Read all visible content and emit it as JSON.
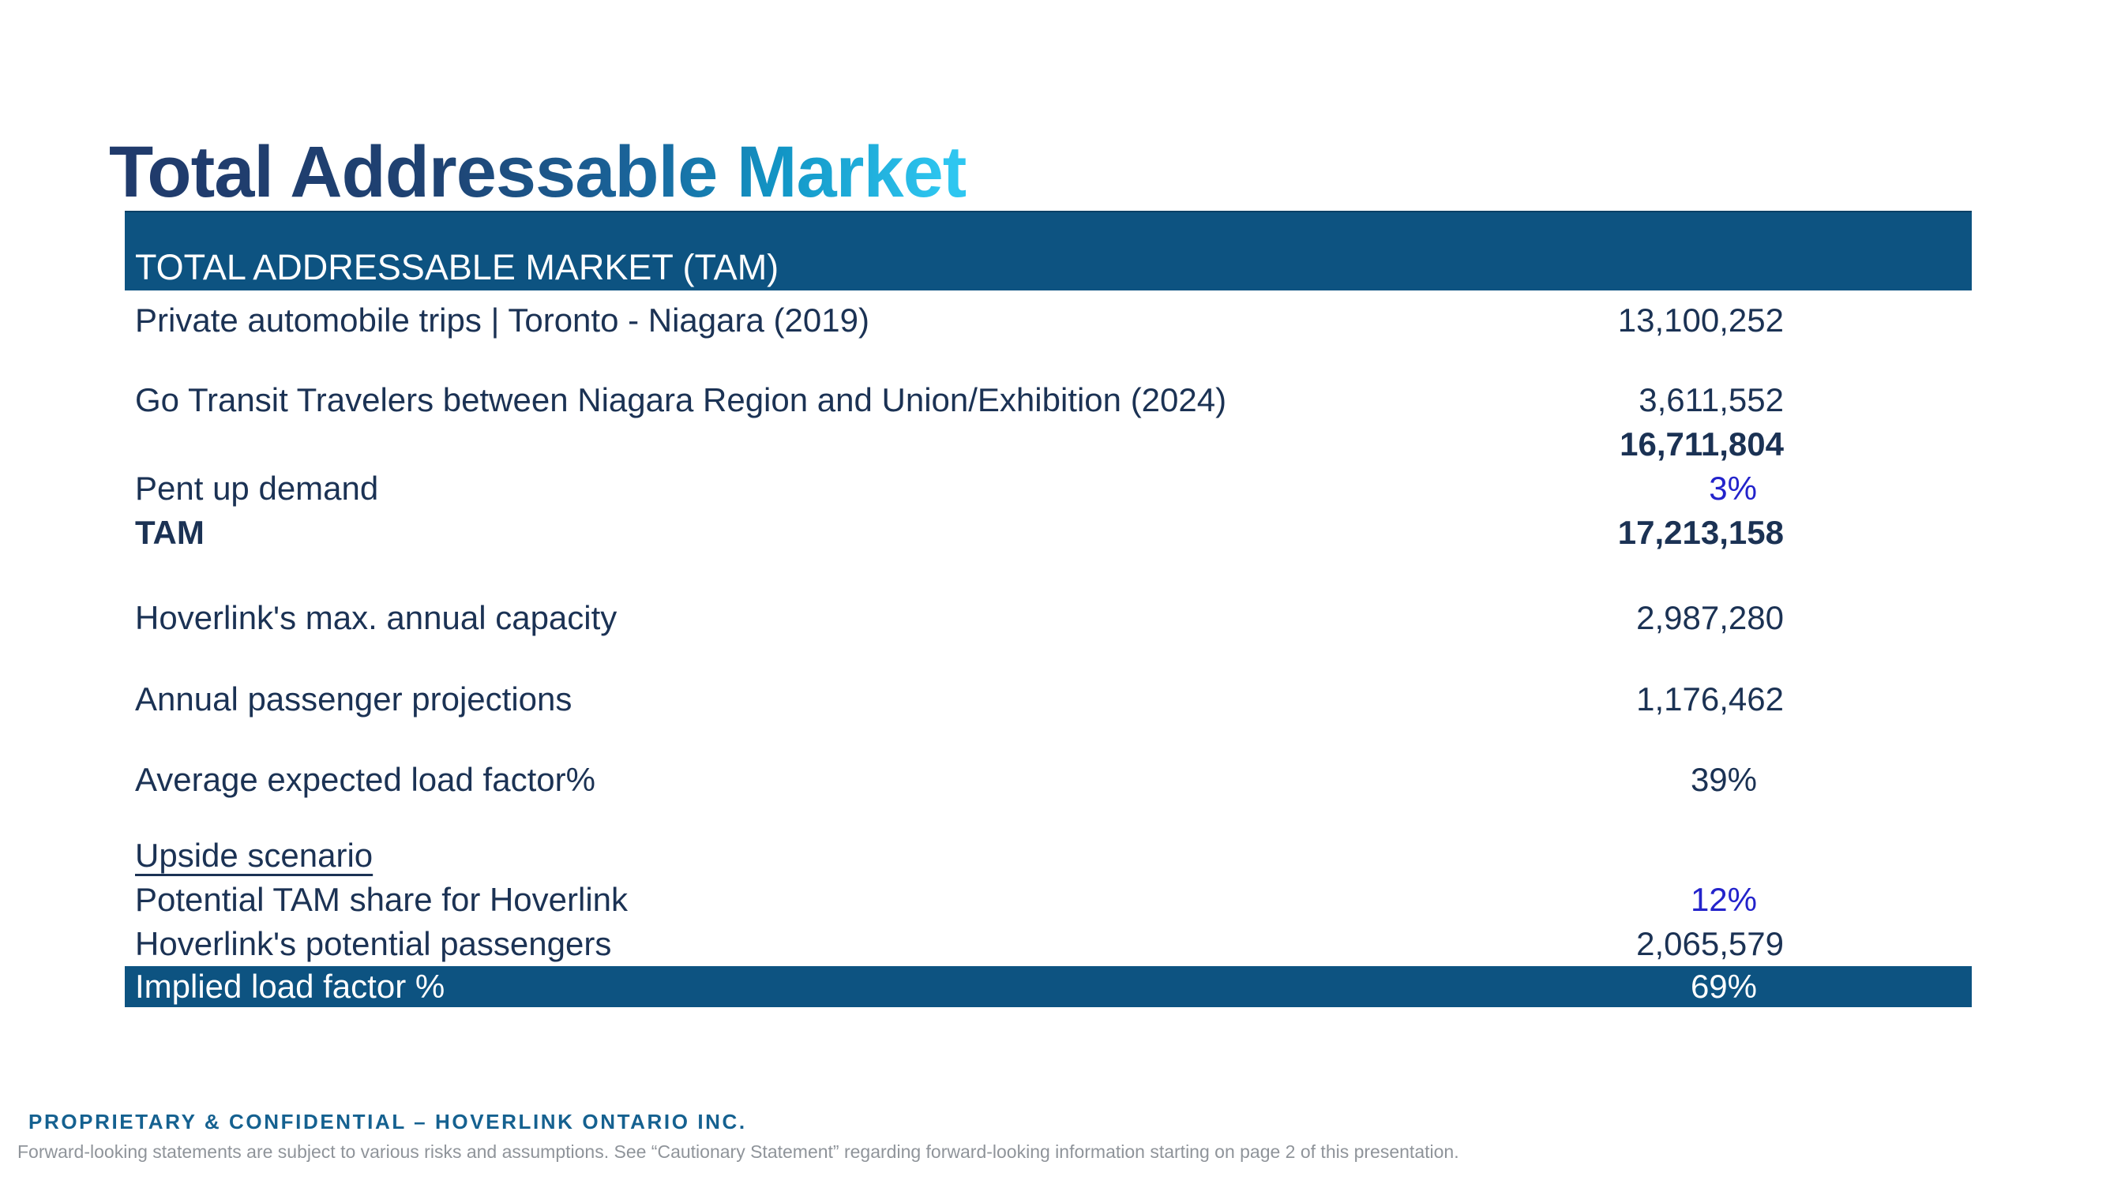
{
  "slide_title": "Total Addressable Market",
  "table": {
    "header": "TOTAL ADDRESSABLE MARKET (TAM)",
    "rows": [
      {
        "label": "Private automobile trips | Toronto - Niagara (2019)",
        "value": "13,100,252"
      },
      {
        "label": "Go Transit Travelers between Niagara Region and Union/Exhibition (2024)",
        "value": "3,611,552"
      },
      {
        "label": "",
        "value": "16,711,804"
      },
      {
        "label": "Pent up demand",
        "value": "3%"
      },
      {
        "label": "TAM",
        "value": "17,213,158"
      },
      {
        "label": "Hoverlink's max. annual capacity",
        "value": "2,987,280"
      },
      {
        "label": "Annual passenger projections",
        "value": "1,176,462"
      },
      {
        "label": "Average expected load factor%",
        "value": "39%"
      },
      {
        "label": "Upside scenario",
        "value": ""
      },
      {
        "label": "Potential TAM share for Hoverlink",
        "value": "12%"
      },
      {
        "label": "Hoverlink's potential passengers",
        "value": "2,065,579"
      }
    ],
    "summary_row": {
      "label": "Implied load factor %",
      "value": "69%"
    }
  },
  "footer": {
    "confidential": "PROPRIETARY & CONFIDENTIAL – HOVERLINK ONTARIO INC.",
    "disclaimer": "Forward-looking statements are subject to various risks and assumptions. See “Cautionary Statement” regarding forward-looking information starting on page 2 of this presentation."
  },
  "colors": {
    "header_bar": "#0d5381",
    "body_text": "#1b3254",
    "accent_percent_blue": "#2323cb",
    "footer_blue": "#156190",
    "title_gradient_start": "#203a6b",
    "title_gradient_end": "#2ec6f0"
  }
}
